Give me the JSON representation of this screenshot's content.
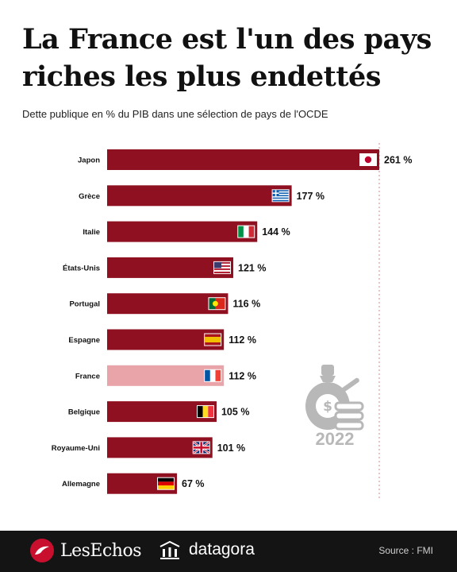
{
  "title": "La France est l'un des pays riches les plus endettés",
  "subtitle": "Dette publique en % du PIB dans une sélection de pays de l'OCDE",
  "year_badge": "2022",
  "footer": {
    "brand": "LesEchos",
    "partner": "datagora",
    "source": "Source : FMI"
  },
  "colors": {
    "bar": "#8f1021",
    "highlight": "#e8a4a8",
    "bar_text": "#111111"
  },
  "chart_data": {
    "type": "bar",
    "orientation": "horizontal",
    "title": "La France est l'un des pays riches les plus endettés",
    "subtitle": "Dette publique en % du PIB dans une sélection de pays de l'OCDE",
    "unit": "%",
    "highlight": "France",
    "grid": false,
    "reference_line": "dotted vertical line at the top value",
    "categories": [
      "Japon",
      "Grèce",
      "Italie",
      "États-Unis",
      "Portugal",
      "Espagne",
      "France",
      "Belgique",
      "Royaume-Uni",
      "Allemagne"
    ],
    "values": [
      261,
      177,
      144,
      121,
      116,
      112,
      112,
      105,
      101,
      67
    ],
    "value_labels": [
      "261 %",
      "177 %",
      "144 %",
      "121 %",
      "116 %",
      "112 %",
      "112 %",
      "105 %",
      "101 %",
      "67 %"
    ],
    "flags": [
      "japan",
      "greece",
      "italy",
      "usa",
      "portugal",
      "spain",
      "france",
      "belgium",
      "uk",
      "germany"
    ],
    "xlim": [
      0,
      261
    ]
  }
}
